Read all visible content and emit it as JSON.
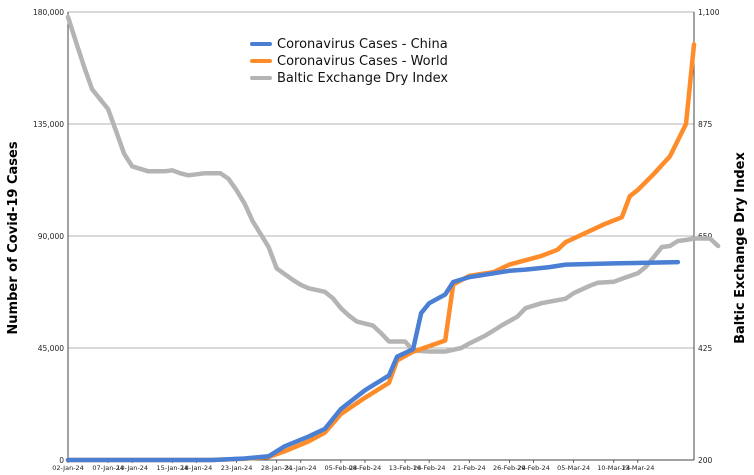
{
  "chart_data": {
    "type": "line",
    "xlabel": "",
    "ylabel": "Number of Covid-19 Cases",
    "y2label": "Baltic Exchange Dry Index",
    "ylim": [
      0,
      180000
    ],
    "y2lim": [
      200,
      1100
    ],
    "yticks": [
      "0",
      "45,000",
      "90,000",
      "135,000",
      "180,000"
    ],
    "y2ticks": [
      "200",
      "425",
      "650",
      "875",
      "1,100"
    ],
    "grid": true,
    "legend_position": "top-center",
    "x_start": "2024-01-02",
    "x_end": "2024-03-18",
    "xtick_labels": [
      {
        "label": "02-Jan-24",
        "date": "2024-01-02"
      },
      {
        "label": "07-Jan-24",
        "date": "2024-01-07"
      },
      {
        "label": "10-Jan-24",
        "date": "2024-01-10"
      },
      {
        "label": "15-Jan-24",
        "date": "2024-01-15"
      },
      {
        "label": "18-Jan-24",
        "date": "2024-01-18"
      },
      {
        "label": "23-Jan-24",
        "date": "2024-01-23"
      },
      {
        "label": "28-Jan-24",
        "date": "2024-01-28"
      },
      {
        "label": "31-Jan-24",
        "date": "2024-01-31"
      },
      {
        "label": "05-Feb-24",
        "date": "2024-02-05"
      },
      {
        "label": "08-Feb-24",
        "date": "2024-02-08"
      },
      {
        "label": "13-Feb-24",
        "date": "2024-02-13"
      },
      {
        "label": "16-Feb-24",
        "date": "2024-02-16"
      },
      {
        "label": "21-Feb-24",
        "date": "2024-02-21"
      },
      {
        "label": "26-Feb-24",
        "date": "2024-02-26"
      },
      {
        "label": "29-Feb-24",
        "date": "2024-02-29"
      },
      {
        "label": "05-Mar-24",
        "date": "2024-03-05"
      },
      {
        "label": "10-Mar-24",
        "date": "2024-03-10"
      },
      {
        "label": "13-Mar-24",
        "date": "2024-03-13"
      }
    ],
    "series": [
      {
        "name": "Coronavirus Cases - China",
        "color": "#4a7fd4",
        "axis": "left",
        "points": [
          [
            "2024-01-02",
            0
          ],
          [
            "2024-01-20",
            0
          ],
          [
            "2024-01-24",
            600
          ],
          [
            "2024-01-27",
            1500
          ],
          [
            "2024-01-29",
            5500
          ],
          [
            "2024-02-01",
            9500
          ],
          [
            "2024-02-03",
            12500
          ],
          [
            "2024-02-05",
            20500
          ],
          [
            "2024-02-08",
            28000
          ],
          [
            "2024-02-11",
            34000
          ],
          [
            "2024-02-12",
            41500
          ],
          [
            "2024-02-14",
            44500
          ],
          [
            "2024-02-15",
            59000
          ],
          [
            "2024-02-16",
            63000
          ],
          [
            "2024-02-18",
            66500
          ],
          [
            "2024-02-19",
            71500
          ],
          [
            "2024-02-21",
            73500
          ],
          [
            "2024-02-26",
            76000
          ],
          [
            "2024-02-28",
            76500
          ],
          [
            "2024-03-02",
            77500
          ],
          [
            "2024-03-04",
            78500
          ],
          [
            "2024-03-10",
            79000
          ],
          [
            "2024-03-18",
            79500
          ]
        ]
      },
      {
        "name": "Coronavirus Cases - World",
        "color": "#ff8c2a",
        "axis": "left",
        "points": [
          [
            "2024-01-02",
            0
          ],
          [
            "2024-01-20",
            0
          ],
          [
            "2024-01-24",
            500
          ],
          [
            "2024-01-27",
            1200
          ],
          [
            "2024-01-29",
            3500
          ],
          [
            "2024-02-01",
            7500
          ],
          [
            "2024-02-03",
            11000
          ],
          [
            "2024-02-05",
            18500
          ],
          [
            "2024-02-08",
            25000
          ],
          [
            "2024-02-11",
            31000
          ],
          [
            "2024-02-12",
            40000
          ],
          [
            "2024-02-14",
            43500
          ],
          [
            "2024-02-18",
            48000
          ],
          [
            "2024-02-19",
            70500
          ],
          [
            "2024-02-21",
            74000
          ],
          [
            "2024-02-24",
            75500
          ],
          [
            "2024-02-26",
            78500
          ],
          [
            "2024-03-01",
            82000
          ],
          [
            "2024-03-03",
            84500
          ],
          [
            "2024-03-04",
            87500
          ],
          [
            "2024-03-09",
            95000
          ],
          [
            "2024-03-11",
            97500
          ],
          [
            "2024-03-12",
            106000
          ],
          [
            "2024-03-13",
            108500
          ],
          [
            "2024-03-15",
            115000
          ],
          [
            "2024-03-17",
            122000
          ],
          [
            "2024-03-19",
            135000
          ],
          [
            "2024-03-20",
            167000
          ]
        ]
      },
      {
        "name": "Baltic Exchange Dry Index",
        "color": "#b4b4b4",
        "axis": "right",
        "points": [
          [
            "2024-01-02",
            1090
          ],
          [
            "2024-01-03",
            1040
          ],
          [
            "2024-01-04",
            990
          ],
          [
            "2024-01-05",
            945
          ],
          [
            "2024-01-07",
            905
          ],
          [
            "2024-01-08",
            860
          ],
          [
            "2024-01-09",
            815
          ],
          [
            "2024-01-10",
            790
          ],
          [
            "2024-01-12",
            780
          ],
          [
            "2024-01-14",
            780
          ],
          [
            "2024-01-15",
            782
          ],
          [
            "2024-01-16",
            776
          ],
          [
            "2024-01-17",
            772
          ],
          [
            "2024-01-19",
            776
          ],
          [
            "2024-01-21",
            776
          ],
          [
            "2024-01-22",
            765
          ],
          [
            "2024-01-23",
            742
          ],
          [
            "2024-01-24",
            715
          ],
          [
            "2024-01-25",
            680
          ],
          [
            "2024-01-27",
            628
          ],
          [
            "2024-01-28",
            585
          ],
          [
            "2024-01-30",
            562
          ],
          [
            "2024-01-31",
            552
          ],
          [
            "2024-02-01",
            545
          ],
          [
            "2024-02-03",
            538
          ],
          [
            "2024-02-04",
            525
          ],
          [
            "2024-02-05",
            505
          ],
          [
            "2024-02-06",
            490
          ],
          [
            "2024-02-07",
            478
          ],
          [
            "2024-02-09",
            470
          ],
          [
            "2024-02-10",
            455
          ],
          [
            "2024-02-11",
            438
          ],
          [
            "2024-02-13",
            438
          ],
          [
            "2024-02-14",
            420
          ],
          [
            "2024-02-16",
            418
          ],
          [
            "2024-02-18",
            418
          ],
          [
            "2024-02-20",
            425
          ],
          [
            "2024-02-21",
            434
          ],
          [
            "2024-02-23",
            450
          ],
          [
            "2024-02-25",
            470
          ],
          [
            "2024-02-27",
            488
          ],
          [
            "2024-02-28",
            505
          ],
          [
            "2024-03-01",
            515
          ],
          [
            "2024-03-02",
            518
          ],
          [
            "2024-03-04",
            524
          ],
          [
            "2024-03-05",
            535
          ],
          [
            "2024-03-07",
            550
          ],
          [
            "2024-03-08",
            556
          ],
          [
            "2024-03-10",
            558
          ],
          [
            "2024-03-11",
            564
          ],
          [
            "2024-03-13",
            575
          ],
          [
            "2024-03-14",
            588
          ],
          [
            "2024-03-16",
            628
          ],
          [
            "2024-03-17",
            630
          ],
          [
            "2024-03-18",
            640
          ],
          [
            "2024-03-19",
            642
          ],
          [
            "2024-03-20",
            645
          ],
          [
            "2024-03-21",
            645
          ],
          [
            "2024-03-22",
            645
          ],
          [
            "2024-03-23",
            630
          ]
        ]
      }
    ]
  }
}
